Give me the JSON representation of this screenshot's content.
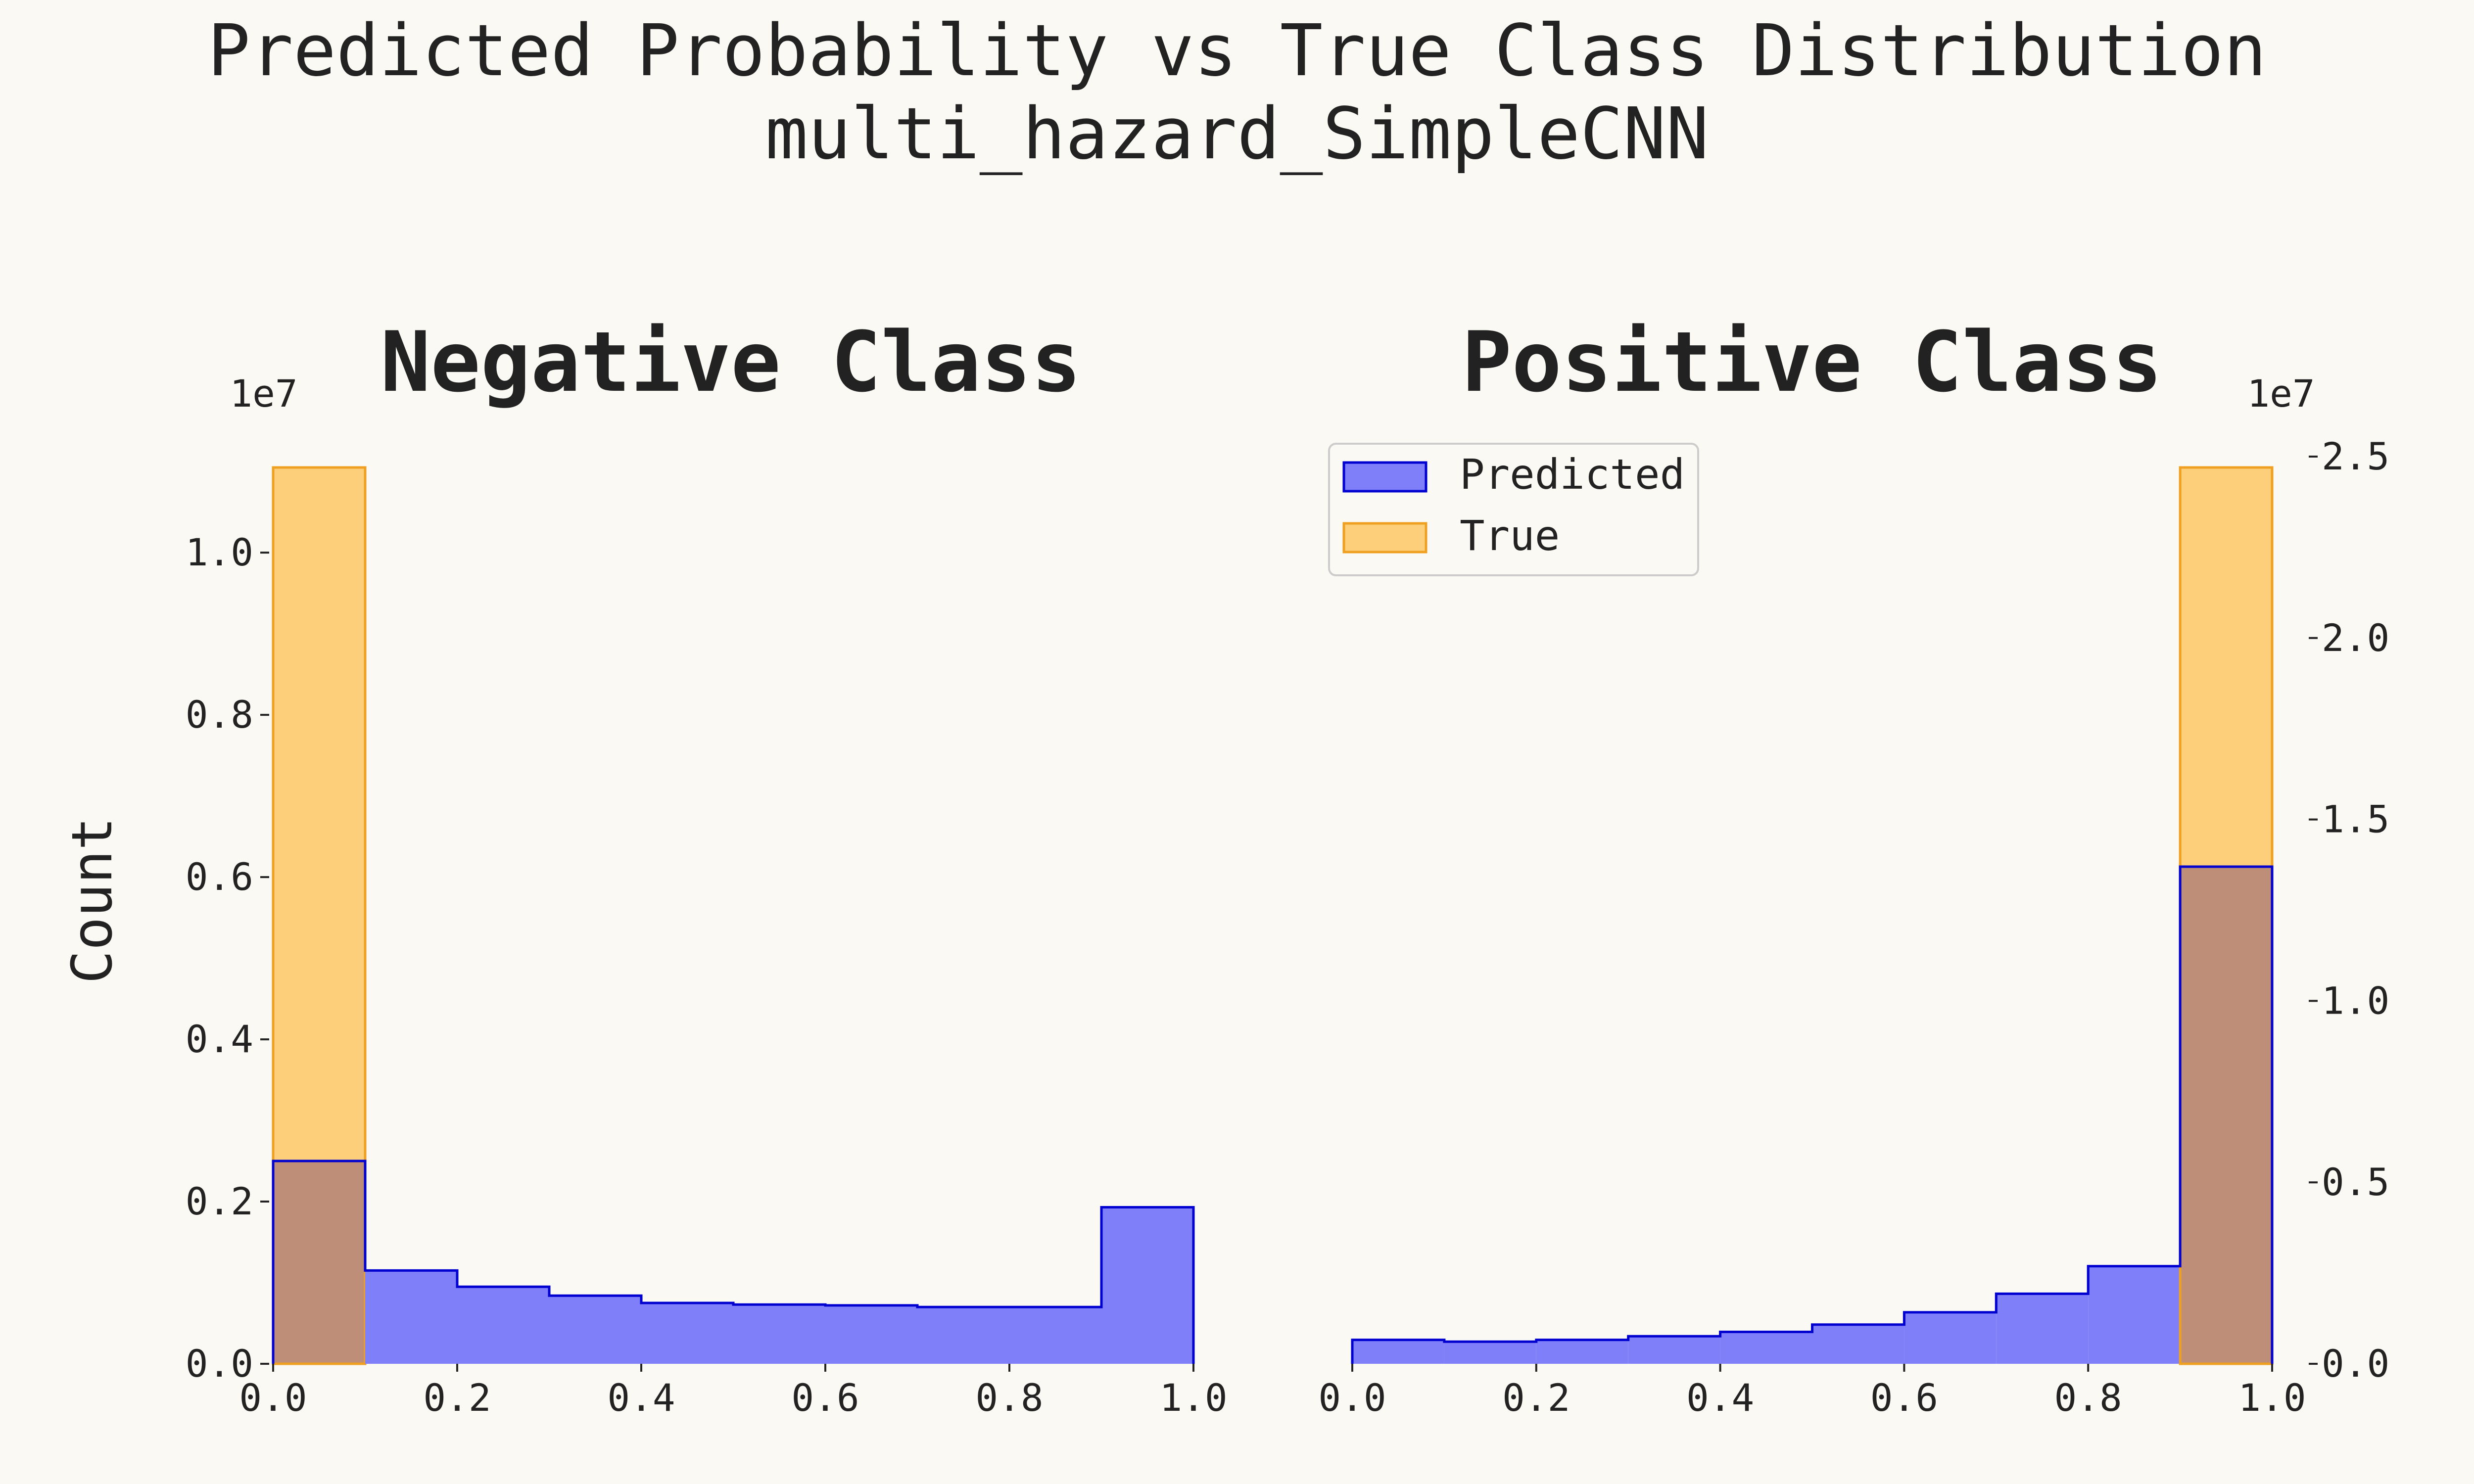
{
  "figure": {
    "title": "Predicted Probability vs True Class Distribution",
    "subtitle": "multi_hazard_SimpleCNN"
  },
  "colors": {
    "background": "#faf9f4",
    "text": "#222222",
    "predicted_fill": "#7f7ffa",
    "predicted_edge": "#0000d0",
    "true_fill": "#fdcf7a",
    "true_edge": "#f0a020",
    "overlap_fill": "#bf8e79"
  },
  "chart_data": [
    {
      "type": "histogram",
      "title": "Negative Class",
      "ylabel": "Count",
      "xlabel": "",
      "bins": [
        0.0,
        0.1,
        0.2,
        0.3,
        0.4,
        0.5,
        0.6,
        0.7,
        0.8,
        0.9,
        1.0
      ],
      "series": [
        {
          "name": "Predicted",
          "values": [
            2500000,
            1150000,
            950000,
            840000,
            750000,
            730000,
            720000,
            700000,
            700000,
            1930000
          ]
        },
        {
          "name": "True",
          "values": [
            11050000,
            0,
            0,
            0,
            0,
            0,
            0,
            0,
            0,
            0
          ]
        }
      ],
      "xlim": [
        0.0,
        1.0
      ],
      "ylim": [
        0,
        11050000
      ],
      "xticks": [
        "0.0",
        "0.2",
        "0.4",
        "0.6",
        "0.8",
        "1.0"
      ],
      "yticks": [
        "0.0",
        "0.2",
        "0.4",
        "0.6",
        "0.8",
        "1.0"
      ],
      "yscale_label": "1e7",
      "yaxis_side": "left"
    },
    {
      "type": "histogram",
      "title": "Positive Class",
      "ylabel": "",
      "xlabel": "",
      "bins": [
        0.0,
        0.1,
        0.2,
        0.3,
        0.4,
        0.5,
        0.6,
        0.7,
        0.8,
        0.9,
        1.0
      ],
      "series": [
        {
          "name": "Predicted",
          "values": [
            660000,
            610000,
            660000,
            760000,
            880000,
            1080000,
            1420000,
            1930000,
            2690000,
            13700000
          ]
        },
        {
          "name": "True",
          "values": [
            0,
            0,
            0,
            0,
            0,
            0,
            0,
            0,
            0,
            24700000
          ]
        }
      ],
      "xlim": [
        0.0,
        1.0
      ],
      "ylim": [
        0,
        24700000
      ],
      "xticks": [
        "0.0",
        "0.2",
        "0.4",
        "0.6",
        "0.8",
        "1.0"
      ],
      "yticks": [
        "0.0",
        "0.5",
        "1.0",
        "1.5",
        "2.0",
        "2.5"
      ],
      "yscale_label": "1e7",
      "yaxis_side": "right",
      "legend": {
        "placement": "upper-left",
        "entries": [
          "Predicted",
          "True"
        ]
      }
    }
  ]
}
